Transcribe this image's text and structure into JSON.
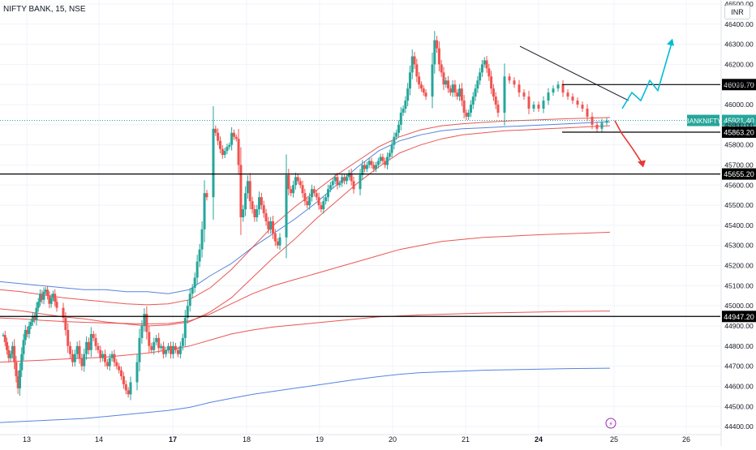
{
  "symbol_title": "NIFTY BANK, 15, NSE",
  "currency": "INR",
  "colors": {
    "up": "#26a69a",
    "down": "#ef5350",
    "ma_red": "#e53935",
    "ma_blue": "#3a6fd8",
    "arrow_up": "#00bcd4",
    "arrow_down": "#e53935",
    "badge_green": "#26a69a",
    "level_line": "#000000",
    "event_icon": "#9c27b0"
  },
  "chart_data": {
    "type": "candlestick",
    "timeframe": "15",
    "y_axis": {
      "ylim": [
        44360,
        46520
      ],
      "ticks": [
        44400,
        44500,
        44600,
        44700,
        44800,
        44900,
        45000,
        45100,
        45200,
        45300,
        45400,
        45500,
        45600,
        45700,
        45800,
        45900,
        46000,
        46100,
        46200,
        46300,
        46400,
        46500
      ],
      "tick_labels": [
        "44400.00",
        "44500.00",
        "44600.00",
        "44700.00",
        "44800.00",
        "44900.00",
        "45000.00",
        "45100.00",
        "45200.00",
        "45300.00",
        "45400.00",
        "45500.00",
        "45600.00",
        "45700.00",
        "45800.00",
        "45900.00",
        "46000.00",
        "46100.00",
        "46200.00",
        "46300.00",
        "46400.00",
        "46500.00"
      ]
    },
    "x_axis": {
      "day_labels": [
        "13",
        "14",
        "17",
        "18",
        "19",
        "20",
        "21",
        "24",
        "25",
        "26"
      ]
    },
    "sessions": [
      {
        "label": "13",
        "prices": [
          44855,
          44820,
          44780,
          44740,
          44760,
          44800,
          44720,
          44650,
          44590,
          44680,
          44760,
          44830,
          44880,
          44860,
          44900,
          44920,
          44950,
          44930,
          44990,
          45020,
          45060,
          45030,
          45070,
          45080,
          45050,
          45010,
          45040,
          45060,
          45020,
          44990
        ]
      },
      {
        "label": "14",
        "prices": [
          44940,
          44880,
          44800,
          44760,
          44720,
          44760,
          44800,
          44740,
          44700,
          44760,
          44820,
          44780,
          44860,
          44840,
          44800,
          44780,
          44740,
          44760,
          44720,
          44700,
          44740,
          44760,
          44720,
          44700,
          44680,
          44650,
          44610,
          44580,
          44560,
          44620
        ]
      },
      {
        "label": "17",
        "prices": [
          44720,
          44840,
          44900,
          44960,
          44870,
          44800,
          44780,
          44820,
          44840,
          44790,
          44800,
          44760,
          44780,
          44800,
          44760,
          44800,
          44780,
          44760,
          44800,
          44840,
          44940,
          45000,
          45060,
          45090,
          45140,
          45220,
          45280,
          45380,
          45560,
          45540
        ]
      },
      {
        "label": "18",
        "prices": [
          45880,
          45860,
          45820,
          45780,
          45750,
          45770,
          45790,
          45800,
          45860,
          45840,
          45830,
          45700,
          45440,
          45480,
          45560,
          45620,
          45520,
          45480,
          45440,
          45480,
          45540,
          45500,
          45460,
          45420,
          45380,
          45420,
          45360,
          45320,
          45300,
          45340
        ]
      },
      {
        "label": "19",
        "prices": [
          45650,
          45580,
          45560,
          45600,
          45640,
          45620,
          45600,
          45560,
          45520,
          45500,
          45540,
          45580,
          45560,
          45540,
          45500,
          45480,
          45520,
          45540,
          45580,
          45600,
          45620,
          45640,
          45600,
          45610,
          45640,
          45620,
          45640,
          45660,
          45620,
          45580
        ]
      },
      {
        "label": "20",
        "prices": [
          45650,
          45700,
          45680,
          45700,
          45720,
          45700,
          45680,
          45700,
          45720,
          45740,
          45720,
          45700,
          45740,
          45760,
          45800,
          45840,
          45860,
          45900,
          45960,
          45980,
          46020,
          46080,
          46160,
          46240,
          46200,
          46140,
          46100,
          46080,
          46060,
          46040
        ]
      },
      {
        "label": "21",
        "prices": [
          46200,
          46320,
          46280,
          46200,
          46160,
          46100,
          46120,
          46080,
          46060,
          46100,
          46060,
          46040,
          46080,
          46020,
          45960,
          45940,
          45960,
          46000,
          46040,
          46080,
          46120,
          46160,
          46200,
          46220,
          46180,
          46140,
          46080,
          46040,
          46000,
          45960
        ]
      },
      {
        "label": "24",
        "prices": [
          46140,
          46120,
          46100,
          46060,
          46040,
          45980,
          46000,
          45980,
          46020,
          46060,
          46080,
          46100,
          46060,
          46040,
          46020,
          46000,
          45980,
          45940,
          45900,
          45880,
          45910,
          45921
        ]
      }
    ],
    "moving_averages": [
      {
        "color_key": "ma_blue",
        "values": [
          45120,
          45110,
          45100,
          45090,
          45080,
          45080,
          45070,
          45070,
          45060,
          45080,
          45150,
          45210,
          45290,
          45360,
          45430,
          45510,
          45600,
          45690,
          45770,
          45820,
          45850,
          45870,
          45880,
          45885,
          45890,
          45895,
          45900,
          45905,
          45910,
          45915
        ]
      },
      {
        "color_key": "ma_red",
        "values": [
          44985,
          44975,
          44960,
          44945,
          44935,
          44920,
          44910,
          44900,
          44905,
          44920,
          44970,
          45040,
          45140,
          45240,
          45330,
          45430,
          45520,
          45610,
          45690,
          45760,
          45800,
          45830,
          45850,
          45860,
          45870,
          45875,
          45880,
          45885,
          45890,
          45895
        ]
      },
      {
        "color_key": "ma_red",
        "values": [
          45080,
          45070,
          45055,
          45040,
          45030,
          45020,
          45010,
          45005,
          45010,
          45030,
          45090,
          45180,
          45290,
          45400,
          45490,
          45570,
          45650,
          45720,
          45790,
          45840,
          45875,
          45895,
          45905,
          45912,
          45918,
          45922,
          45926,
          45930,
          45933,
          45936
        ]
      },
      {
        "color_key": "ma_red",
        "values": [
          44940,
          44935,
          44928,
          44922,
          44918,
          44915,
          44912,
          44910,
          44912,
          44925,
          44960,
          45010,
          45060,
          45100,
          45130,
          45160,
          45190,
          45220,
          45250,
          45280,
          45300,
          45320,
          45330,
          45340,
          45345,
          45350,
          45355,
          45358,
          45362,
          45366
        ]
      },
      {
        "color_key": "ma_red",
        "values": [
          44720,
          44725,
          44730,
          44735,
          44740,
          44745,
          44755,
          44765,
          44780,
          44800,
          44830,
          44860,
          44880,
          44895,
          44905,
          44915,
          44925,
          44935,
          44945,
          44950,
          44955,
          44958,
          44961,
          44964,
          44966,
          44968,
          44970,
          44972,
          44973,
          44974
        ]
      },
      {
        "color_key": "ma_blue",
        "values": [
          44420,
          44425,
          44430,
          44435,
          44440,
          44450,
          44460,
          44470,
          44480,
          44495,
          44520,
          44540,
          44560,
          44575,
          44590,
          44605,
          44620,
          44635,
          44648,
          44660,
          44668,
          44672,
          44676,
          44680,
          44682,
          44684,
          44686,
          44688,
          44689,
          44690
        ]
      }
    ],
    "levels": [
      {
        "price": 46099.7,
        "label": "46099.70",
        "style": "dark"
      },
      {
        "price": 45863.2,
        "label": "45863.20",
        "style": "dark"
      },
      {
        "price": 45655.2,
        "label": "45655.20",
        "style": "dark"
      },
      {
        "price": 44947.2,
        "label": "44947.20",
        "style": "dark"
      }
    ],
    "current_price": {
      "value": 45921.4,
      "label": "45921.40",
      "ticker": "BANKNIFTY"
    },
    "trendline": {
      "from": [
        0.68,
        46290
      ],
      "to": [
        0.86,
        46020
      ]
    },
    "projection_up": [
      45980,
      46060,
      46020,
      46120,
      46070,
      46320
    ],
    "projection_down": [
      45920,
      45860,
      45780,
      45700
    ]
  }
}
